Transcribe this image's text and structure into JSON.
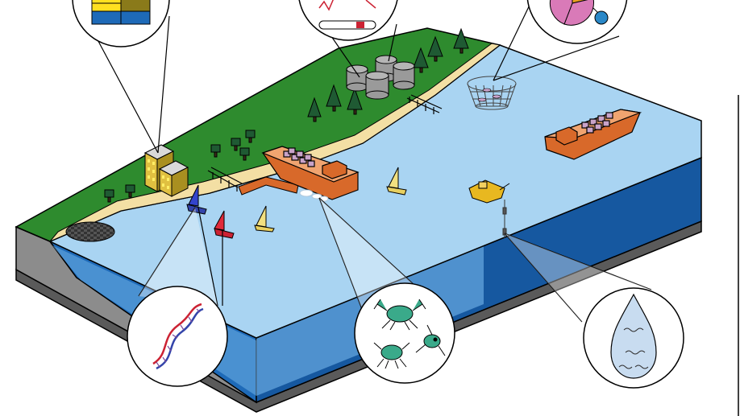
{
  "scene": {
    "colors": {
      "background": "#ffffff",
      "land": "#2e8b2e",
      "beach": "#f3dfa4",
      "water_surface": "#a9d4f2",
      "water_side_front": "#1e6ab8",
      "water_side_right": "#1658a0",
      "ground_side": "#8c8c8c",
      "ground_bottom": "#5a5a5a",
      "ship_hull": "#d8692a",
      "ship_deck": "#f0a470",
      "container": "#c9a3c9",
      "tank": "#9a9a9a",
      "tree": "#1f5a33",
      "building": "#e0c040",
      "window": "#ffee66",
      "crab": "#3aaa8a",
      "dna_red": "#cc2233",
      "dna_blue": "#3344aa",
      "drop": "#c8dcf0"
    },
    "icons": [
      "shoreline-icon",
      "cargo-ship-icon",
      "sailboat-icon",
      "oil-tank-icon",
      "tree-icon",
      "office-building-icon",
      "fish-net-icon",
      "tugboat-icon",
      "dna-icon",
      "crab-icon",
      "copepod-icon",
      "water-drop-icon",
      "pie-chart-icon",
      "bar-chart-icon",
      "gauge-icon"
    ]
  }
}
